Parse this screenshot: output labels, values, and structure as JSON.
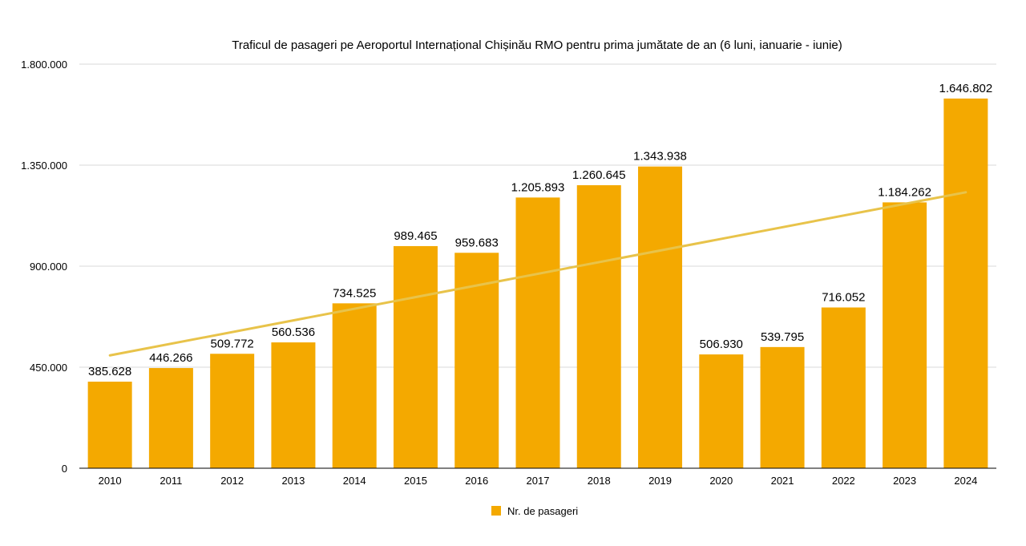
{
  "chart_data": {
    "type": "bar",
    "title": "Traficul de pasageri pe Aeroportul Internațional Chișinău RMO pentru prima jumătate de an (6 luni, ianuarie - iunie)",
    "categories": [
      "2010",
      "2011",
      "2012",
      "2013",
      "2014",
      "2015",
      "2016",
      "2017",
      "2018",
      "2019",
      "2020",
      "2021",
      "2022",
      "2023",
      "2024"
    ],
    "series": [
      {
        "name": "Nr. de pasageri",
        "values": [
          385628,
          446266,
          509772,
          560536,
          734525,
          989465,
          959683,
          1205893,
          1260645,
          1343938,
          506930,
          539795,
          716052,
          1184262,
          1646802
        ],
        "labels": [
          "385.628",
          "446.266",
          "509.772",
          "560.536",
          "734.525",
          "989.465",
          "959.683",
          "1.205.893",
          "1.260.645",
          "1.343.938",
          "506.930",
          "539.795",
          "716.052",
          "1.184.262",
          "1.646.802"
        ]
      }
    ],
    "ylim": [
      0,
      1800000
    ],
    "yticks": [
      0,
      450000,
      900000,
      1350000,
      1800000
    ],
    "ytick_labels": [
      "0",
      "450.000",
      "900.000",
      "1.350.000",
      "1.800.000"
    ],
    "trendline": {
      "type": "linear",
      "color": "#e8c34a"
    },
    "grid": true,
    "legend": "bottom-center",
    "colors": {
      "bar": "#f4a900",
      "grid": "#d9d9d9",
      "axis": "#000000"
    }
  }
}
